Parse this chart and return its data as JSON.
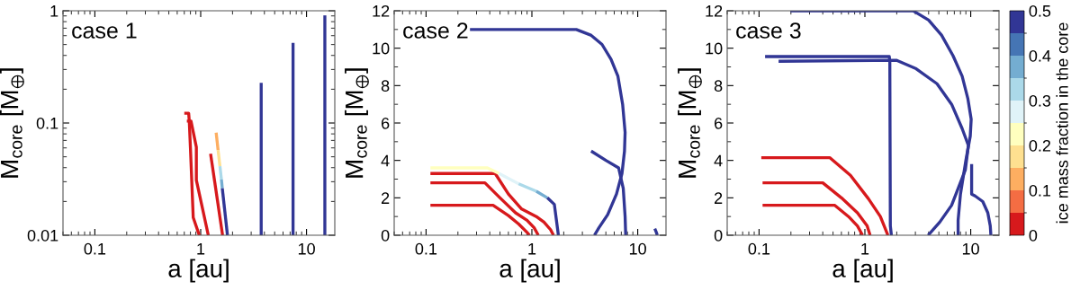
{
  "chart_data": [
    {
      "type": "line",
      "title": "case 1",
      "xlabel": "a [au]",
      "ylabel": "M$_{core}$ [M$_{⊕}$]",
      "log": "xy",
      "xlim": [
        0.05,
        18.5
      ],
      "xticks": [
        0.1,
        1,
        10
      ],
      "ylim": [
        0.01,
        1
      ],
      "yticks": [
        0.01,
        0.1,
        1
      ],
      "legend": false,
      "grid": false,
      "series": [
        {
          "color": "#d7191c",
          "x": [
            0.7,
            0.77,
            0.78,
            0.8,
            0.85,
            0.97
          ],
          "values": [
            0.122,
            0.122,
            0.104,
            0.06,
            0.0144,
            0.01
          ]
        },
        {
          "color": "#d7191c",
          "x": [
            0.74,
            0.81,
            0.82,
            0.91,
            0.91,
            1.18
          ],
          "values": [
            0.104,
            0.104,
            0.0985,
            0.061,
            0.031,
            0.01
          ]
        },
        {
          "color": "#d7191c",
          "x": [
            1.24,
            1.61
          ],
          "values": [
            0.0532,
            0.01
          ]
        },
        {
          "color": "#fdae61",
          "x": [
            1.4,
            1.46
          ],
          "values": [
            0.082,
            0.0574
          ]
        },
        {
          "color": "#fee090",
          "x": [
            1.46,
            1.52
          ],
          "values": [
            0.0574,
            0.0412
          ]
        },
        {
          "color": "#abd9e9",
          "x": [
            1.52,
            1.57
          ],
          "values": [
            0.0412,
            0.0314
          ]
        },
        {
          "color": "#74add1",
          "x": [
            1.57,
            1.6
          ],
          "values": [
            0.0314,
            0.0262
          ]
        },
        {
          "color": "#313695",
          "x": [
            1.6,
            1.79
          ],
          "values": [
            0.0262,
            0.01
          ]
        },
        {
          "color": "#313695",
          "x": [
            3.73,
            3.73
          ],
          "values": [
            0.01,
            0.228
          ]
        },
        {
          "color": "#313695",
          "x": [
            7.46,
            7.46
          ],
          "values": [
            0.01,
            0.518
          ]
        },
        {
          "color": "#313695",
          "x": [
            14.9,
            14.9
          ],
          "values": [
            0.01,
            0.91
          ]
        }
      ]
    },
    {
      "type": "line",
      "title": "case 2",
      "xlabel": "a [au]",
      "ylabel": "M$_{core}$ [M$_{⊕}$]",
      "log": "x",
      "xlim": [
        0.05,
        18.5
      ],
      "xticks": [
        0.1,
        1,
        10
      ],
      "ylim": [
        0,
        12
      ],
      "yticks": [
        0,
        2,
        4,
        6,
        8,
        10,
        12
      ],
      "legend": false,
      "grid": false,
      "series": [
        {
          "color": "#d7191c",
          "x": [
            0.11,
            0.43,
            0.6,
            0.75,
            0.9,
            0.95
          ],
          "values": [
            1.6,
            1.6,
            1.05,
            0.6,
            0.15,
            0
          ]
        },
        {
          "color": "#d7191c",
          "x": [
            0.11,
            0.36,
            0.5,
            0.7,
            0.9,
            1.05,
            1.15
          ],
          "values": [
            2.8,
            2.8,
            2.0,
            1.2,
            0.8,
            0.4,
            0
          ]
        },
        {
          "color": "#d7191c",
          "x": [
            0.11,
            0.45,
            0.6,
            0.8,
            1.1,
            1.3,
            1.5,
            1.6
          ],
          "values": [
            3.3,
            3.3,
            2.2,
            1.4,
            1.0,
            0.7,
            0.3,
            0
          ]
        },
        {
          "color": "#ffffbf",
          "x": [
            0.11,
            0.38,
            0.49
          ],
          "values": [
            3.6,
            3.6,
            3.3
          ]
        },
        {
          "color": "#e0f3f8",
          "x": [
            0.49,
            0.75
          ],
          "values": [
            3.3,
            2.75
          ]
        },
        {
          "color": "#abd9e9",
          "x": [
            0.75,
            1.1
          ],
          "values": [
            2.75,
            2.35
          ]
        },
        {
          "color": "#74add1",
          "x": [
            1.1,
            1.4
          ],
          "values": [
            2.35,
            2.0
          ]
        },
        {
          "color": "#313695",
          "x": [
            1.4,
            1.63,
            1.78
          ],
          "values": [
            2.0,
            1.65,
            0
          ]
        },
        {
          "color": "#313695",
          "x": [
            0.26,
            2.63,
            3.6,
            4.6,
            5.6,
            6.5,
            7.2,
            7.6,
            7.5,
            7.1,
            6.3,
            5.2,
            4.3,
            3.9
          ],
          "values": [
            11,
            11,
            10.7,
            10.2,
            9.4,
            8.5,
            7.0,
            5.5,
            4.5,
            3.3,
            2.2,
            1.1,
            0.4,
            0
          ]
        },
        {
          "color": "#313695",
          "x": [
            3.63,
            5.0,
            6.6,
            7.3,
            7.6,
            7.7
          ],
          "values": [
            4.5,
            4.0,
            3.6,
            2.5,
            1.0,
            0
          ]
        },
        {
          "color": "#313695",
          "x": [
            14.5,
            15.0,
            15.3
          ],
          "values": [
            0.35,
            0.15,
            0
          ]
        }
      ]
    },
    {
      "type": "line",
      "title": "case 3",
      "xlabel": "a [au]",
      "ylabel": "M$_{core}$ [M$_{⊕}$]",
      "log": "x",
      "xlim": [
        0.05,
        18.5
      ],
      "xticks": [
        0.1,
        1,
        10
      ],
      "ylim": [
        0,
        12
      ],
      "yticks": [
        0,
        2,
        4,
        6,
        8,
        10,
        12
      ],
      "legend": false,
      "grid": false,
      "clim": [
        0,
        0.5
      ],
      "cticks": [
        0,
        0.1,
        0.2,
        0.3,
        0.4,
        0.5
      ],
      "clabel": "ice mass fraction in the core",
      "series": [
        {
          "color": "#d7191c",
          "x": [
            0.108,
            0.52,
            0.7,
            0.85,
            0.95
          ],
          "values": [
            1.6,
            1.6,
            1.0,
            0.5,
            0
          ]
        },
        {
          "color": "#d7191c",
          "x": [
            0.108,
            0.4,
            0.6,
            0.85,
            1.05,
            1.12
          ],
          "values": [
            2.8,
            2.8,
            2.0,
            1.2,
            0.5,
            0
          ]
        },
        {
          "color": "#d7191c",
          "x": [
            0.105,
            0.465,
            0.73,
            1.08,
            1.4,
            1.65
          ],
          "values": [
            4.15,
            4.15,
            3.2,
            1.95,
            1.0,
            0
          ]
        },
        {
          "color": "#313695",
          "x": [
            0.114,
            1.7,
            1.72,
            1.74,
            1.78
          ],
          "values": [
            9.55,
            9.55,
            9.3,
            0.5,
            0
          ]
        },
        {
          "color": "#313695",
          "x": [
            0.153,
            2.0,
            3.05,
            4.8,
            6.6,
            8.3,
            9.5,
            8.9,
            6.6,
            5.1,
            3.96
          ],
          "values": [
            9.3,
            9.35,
            8.9,
            8.1,
            7.0,
            5.7,
            4.8,
            3.5,
            1.6,
            0.7,
            0
          ]
        },
        {
          "color": "#313695",
          "x": [
            0.198,
            2.86,
            4.0,
            5.3,
            6.8,
            8.3,
            9.4,
            10.1,
            9.9,
            9.0,
            8.0,
            7.6,
            7.6
          ],
          "values": [
            12,
            12,
            11.5,
            10.7,
            9.6,
            8.5,
            7.3,
            6.2,
            5.3,
            4.0,
            2.2,
            0.8,
            0
          ]
        },
        {
          "color": "#313695",
          "x": [
            10.2,
            10.2,
            11.0,
            13.0,
            14.5,
            15.3,
            15.5
          ],
          "values": [
            3.8,
            2.2,
            2.1,
            1.8,
            1.2,
            0.5,
            0
          ]
        }
      ]
    }
  ]
}
